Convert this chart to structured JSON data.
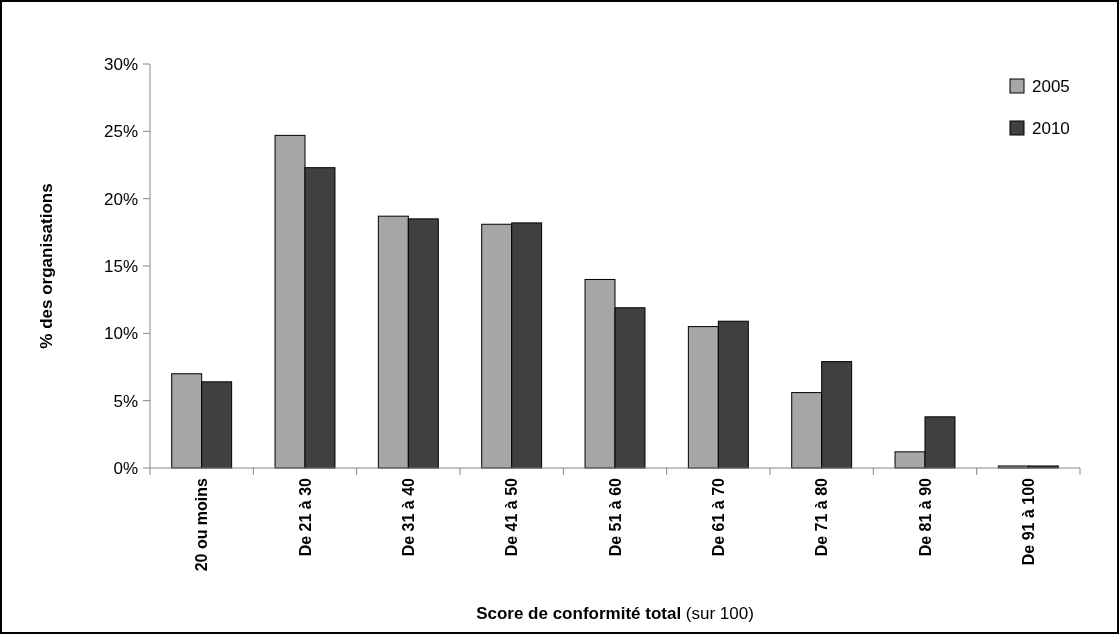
{
  "chart_data": {
    "type": "bar",
    "xlabel": "Score de conformité total (sur 100)",
    "ylabel": "% des organisations",
    "categories": [
      "20 ou moins",
      "De 21 à 30",
      "De 31 à 40",
      "De 41 à 50",
      "De 51 à 60",
      "De 61 à 70",
      "De 71 à 80",
      "De 81 à 90",
      "De 91 à 100"
    ],
    "series": [
      {
        "name": "2005",
        "color": "#a6a6a6",
        "values": [
          7.0,
          24.7,
          18.7,
          18.1,
          14.0,
          10.5,
          5.6,
          1.2,
          0.15
        ]
      },
      {
        "name": "2010",
        "color": "#404040",
        "values": [
          6.4,
          22.3,
          18.5,
          18.2,
          11.9,
          10.9,
          7.9,
          3.8,
          0.15
        ]
      }
    ],
    "ylim": [
      0,
      30
    ],
    "yticks": [
      {
        "value": 0,
        "label": "0%"
      },
      {
        "value": 5,
        "label": "5%"
      },
      {
        "value": 10,
        "label": "10%"
      },
      {
        "value": 15,
        "label": "15%"
      },
      {
        "value": 20,
        "label": "20%"
      },
      {
        "value": 25,
        "label": "25%"
      },
      {
        "value": 30,
        "label": "30%"
      }
    ],
    "legend": "top right",
    "grid": false
  }
}
